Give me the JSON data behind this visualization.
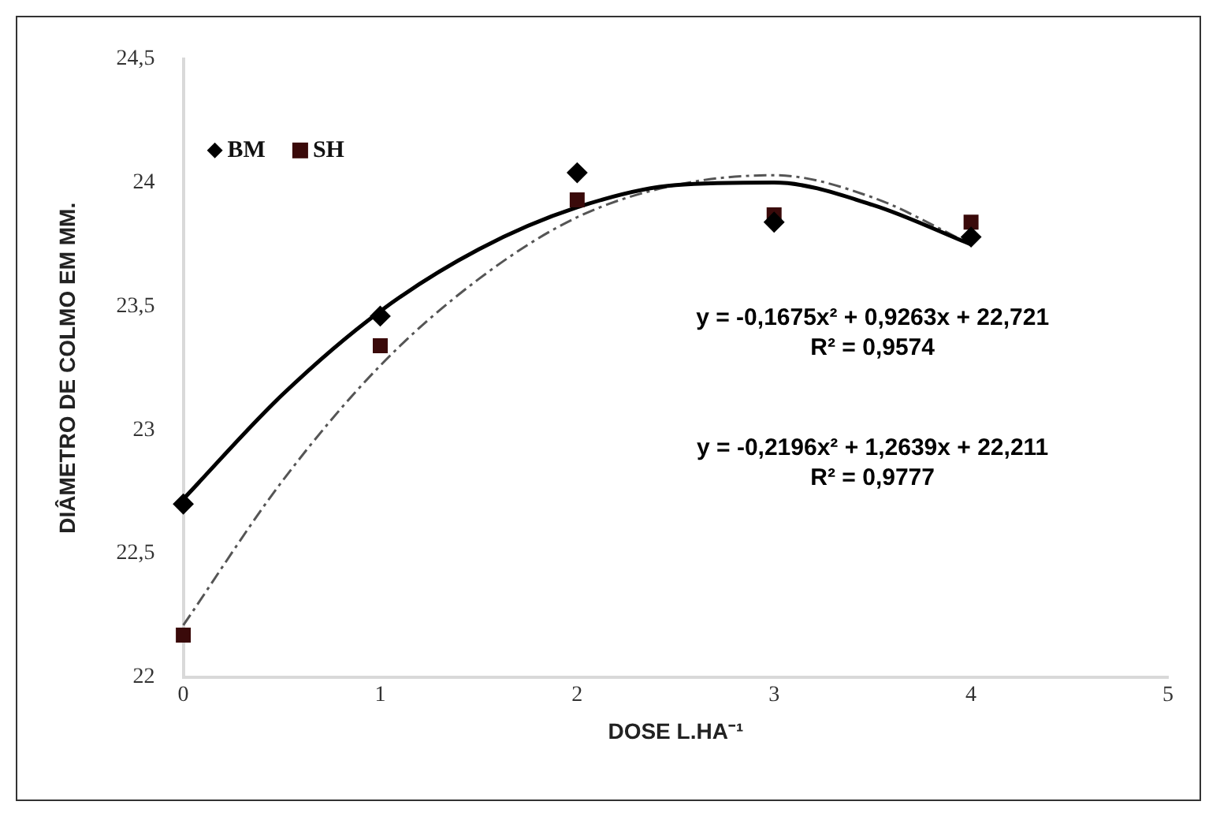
{
  "chart_data": {
    "type": "scatter",
    "xlabel": "DOSE L.HA⁻¹",
    "ylabel": "DIÂMETRO DE COLMO EM MM.",
    "x": [
      0,
      1,
      2,
      3,
      4
    ],
    "series": [
      {
        "name": "BM",
        "color": "#000000",
        "marker": "diamond",
        "values": [
          22.7,
          23.46,
          24.04,
          23.84,
          23.78
        ]
      },
      {
        "name": "SH",
        "color": "#3a0a0a",
        "marker": "square",
        "values": [
          22.17,
          23.34,
          23.93,
          23.87,
          23.84
        ]
      },
      {
        "type": "line",
        "color": "#000000",
        "line_style": "solid",
        "marker": "none",
        "x": [
          0,
          0.5,
          1,
          1.5,
          2,
          2.5,
          3,
          3.5,
          4
        ],
        "values": [
          22.72,
          23.14,
          23.48,
          23.73,
          23.9,
          23.99,
          24.0,
          23.91,
          23.75
        ]
      },
      {
        "type": "line",
        "color": "#555555",
        "line_style": "dashed",
        "marker": "none",
        "x": [
          0,
          0.5,
          1,
          1.5,
          2,
          2.5,
          3,
          3.5,
          4
        ],
        "values": [
          22.21,
          22.79,
          23.26,
          23.61,
          23.86,
          23.99,
          24.03,
          23.94,
          23.75
        ]
      }
    ],
    "xlim": [
      0,
      5
    ],
    "xticks": [
      0,
      1,
      2,
      3,
      4,
      5
    ],
    "ylim": [
      22,
      24.5
    ],
    "yticks": [
      22,
      {
        "value": 22.5,
        "label": "22,5"
      },
      23,
      {
        "value": 23.5,
        "label": "23,5"
      },
      24,
      {
        "value": 24.5,
        "label": "24,5"
      }
    ],
    "grid": false,
    "legend": "top left",
    "annotations": [
      "y = -0,1675x² + 0,9263x + 22,721\nR² = 0,9574",
      "y = -0,2196x² + 1,2639x + 22,211\nR² = 0,9777"
    ]
  }
}
